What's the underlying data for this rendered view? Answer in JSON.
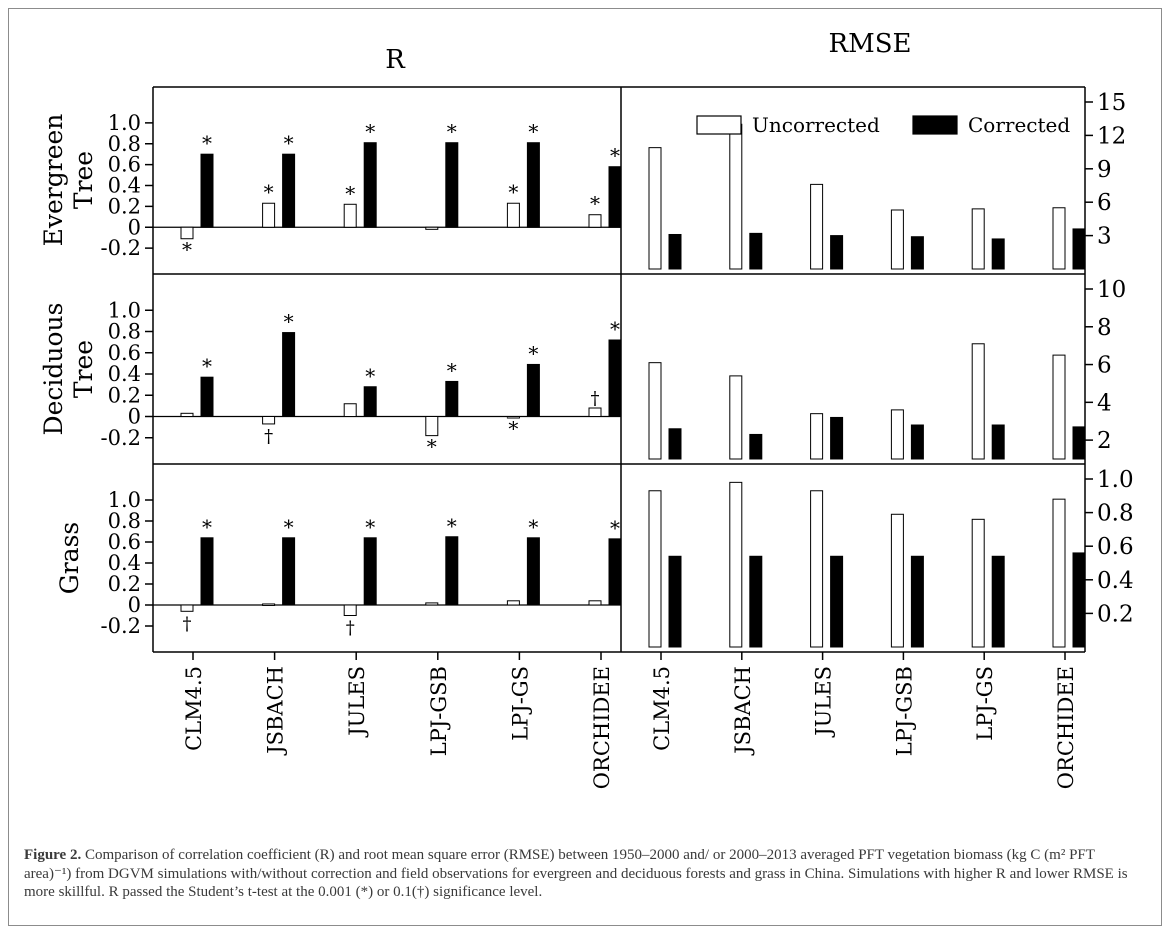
{
  "figure": {
    "caption_label": "Figure 2.",
    "caption_text": "Comparison of correlation coefficient (R) and root mean square error (RMSE) between 1950–2000 and/ or 2000–2013 averaged PFT vegetation biomass (kg C (m² PFT area)⁻¹) from DGVM simulations with/without correction and field observations for evergreen and deciduous forests and grass in China. Simulations with higher R and lower RMSE is more skillful. R passed the Student’s t-test at the 0.001 (*) or 0.1(†) significance level."
  },
  "chart_data": {
    "type": "bar",
    "categories": [
      "CLM4.5",
      "JSBACH",
      "JULES",
      "LPJ-GSB",
      "LPJ-GS",
      "ORCHIDEE"
    ],
    "column_titles": [
      "R",
      "RMSE"
    ],
    "row_titles": [
      [
        "Evergreen",
        "Tree"
      ],
      [
        "Deciduous",
        "Tree"
      ],
      [
        "Grass"
      ]
    ],
    "legend": {
      "position": "top-right",
      "entries": [
        "Uncorrected",
        "Corrected"
      ]
    },
    "colors": {
      "uncorrected": "#ffffff",
      "corrected": "#000000"
    },
    "r_axis": {
      "ylim": [
        -0.4,
        1.2
      ],
      "ticks": [
        "1.0",
        "0.8",
        "0.6",
        "0.4",
        "0.2",
        "0",
        "-0.2"
      ]
    },
    "panels": [
      {
        "column": "R",
        "row": "Evergreen Tree",
        "series": [
          {
            "name": "Uncorrected",
            "values": [
              -0.11,
              0.23,
              0.22,
              -0.02,
              0.23,
              0.12
            ],
            "marks": [
              "*",
              "*",
              "*",
              "",
              "*",
              "*"
            ]
          },
          {
            "name": "Corrected",
            "values": [
              0.7,
              0.7,
              0.81,
              0.81,
              0.81,
              0.58
            ],
            "marks": [
              "*",
              "*",
              "*",
              "*",
              "*",
              "*"
            ]
          }
        ]
      },
      {
        "column": "R",
        "row": "Deciduous Tree",
        "series": [
          {
            "name": "Uncorrected",
            "values": [
              0.03,
              -0.07,
              0.12,
              -0.18,
              -0.01,
              0.08
            ],
            "marks": [
              "",
              "†",
              "",
              "*",
              "*",
              "†"
            ]
          },
          {
            "name": "Corrected",
            "values": [
              0.37,
              0.79,
              0.28,
              0.33,
              0.49,
              0.72
            ],
            "marks": [
              "*",
              "*",
              "*",
              "*",
              "*",
              "*"
            ]
          }
        ]
      },
      {
        "column": "R",
        "row": "Grass",
        "series": [
          {
            "name": "Uncorrected",
            "values": [
              -0.06,
              0.01,
              -0.1,
              0.02,
              0.04,
              0.04
            ],
            "marks": [
              "†",
              "",
              "†",
              "",
              "",
              ""
            ]
          },
          {
            "name": "Corrected",
            "values": [
              0.64,
              0.64,
              0.64,
              0.65,
              0.64,
              0.63
            ],
            "marks": [
              "*",
              "*",
              "*",
              "*",
              "*",
              "*"
            ]
          }
        ]
      },
      {
        "column": "RMSE",
        "row": "Evergreen Tree",
        "ylim": [
          0,
          15
        ],
        "ticks": [
          "15",
          "12",
          "9",
          "6",
          "3"
        ],
        "series": [
          {
            "name": "Uncorrected",
            "values": [
              10.9,
              13.0,
              7.6,
              5.3,
              5.4,
              5.5
            ]
          },
          {
            "name": "Corrected",
            "values": [
              3.1,
              3.2,
              3.0,
              2.9,
              2.7,
              3.6
            ]
          }
        ]
      },
      {
        "column": "RMSE",
        "row": "Deciduous Tree",
        "ylim": [
          1,
          10
        ],
        "ticks": [
          "10",
          "8",
          "6",
          "4",
          "2"
        ],
        "series": [
          {
            "name": "Uncorrected",
            "values": [
              6.1,
              5.4,
              3.4,
              3.6,
              7.1,
              6.5
            ]
          },
          {
            "name": "Corrected",
            "values": [
              2.6,
              2.3,
              3.2,
              2.8,
              2.8,
              2.7
            ]
          }
        ]
      },
      {
        "column": "RMSE",
        "row": "Grass",
        "ylim": [
          0,
          1.0
        ],
        "ticks": [
          "1.0",
          "0.8",
          "0.6",
          "0.4",
          "0.2"
        ],
        "series": [
          {
            "name": "Uncorrected",
            "values": [
              0.93,
              0.98,
              0.93,
              0.79,
              0.76,
              0.88
            ]
          },
          {
            "name": "Corrected",
            "values": [
              0.54,
              0.54,
              0.54,
              0.54,
              0.54,
              0.56
            ]
          }
        ]
      }
    ]
  }
}
